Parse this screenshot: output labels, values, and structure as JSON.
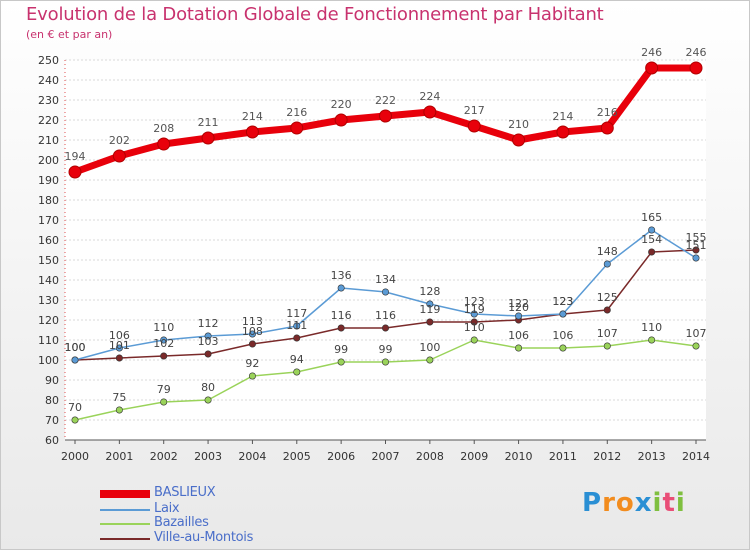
{
  "title": "Evolution de la Dotation Globale de Fonctionnement par Habitant",
  "subtitle": "(en € et par an)",
  "logo": {
    "letters": [
      "P",
      "r",
      "o",
      "x",
      "i",
      "t",
      "i"
    ],
    "colors": [
      "#2a8fd4",
      "#f28c1e",
      "#f28c1e",
      "#2a8fd4",
      "#7fbf3f",
      "#e94e77",
      "#7fbf3f"
    ]
  },
  "chart_data": {
    "type": "line",
    "title": "Evolution de la Dotation Globale de Fonctionnement par Habitant",
    "subtitle": "(en € et par an)",
    "xlabel": "",
    "ylabel": "",
    "ylim": [
      60,
      250
    ],
    "yticks": [
      60,
      70,
      80,
      90,
      100,
      110,
      120,
      130,
      140,
      150,
      160,
      170,
      180,
      190,
      200,
      210,
      220,
      230,
      240,
      250
    ],
    "x": [
      "2000",
      "2001",
      "2002",
      "2003",
      "2004",
      "2005",
      "2006",
      "2007",
      "2008",
      "2009",
      "2010",
      "2011",
      "2012",
      "2013",
      "2014"
    ],
    "grid": "horizontal",
    "legend_position": "bottom-left",
    "series": [
      {
        "name": "BASLIEUX",
        "color": "#e8000b",
        "values": [
          194,
          202,
          208,
          211,
          214,
          216,
          220,
          222,
          224,
          217,
          210,
          214,
          216,
          246,
          246
        ]
      },
      {
        "name": "Laix",
        "color": "#5b9bd5",
        "values": [
          100,
          106,
          110,
          112,
          113,
          117,
          136,
          134,
          128,
          123,
          122,
          123,
          148,
          165,
          151
        ],
        "labels": [
          "100",
          "106",
          "110",
          "112",
          "113",
          "117",
          "136",
          "134",
          "128",
          "123",
          "122",
          "123",
          "148",
          "165",
          "151"
        ]
      },
      {
        "name": "Bazailles",
        "color": "#9ad35a",
        "values": [
          70,
          75,
          79,
          80,
          92,
          94,
          99,
          99,
          100,
          110,
          106,
          106,
          107,
          110,
          107
        ]
      },
      {
        "name": "Ville-au-Montois",
        "color": "#7a2a2a",
        "values": [
          100,
          101,
          102,
          103,
          108,
          111,
          116,
          116,
          119,
          119,
          120,
          123,
          125,
          154,
          155
        ]
      }
    ]
  }
}
